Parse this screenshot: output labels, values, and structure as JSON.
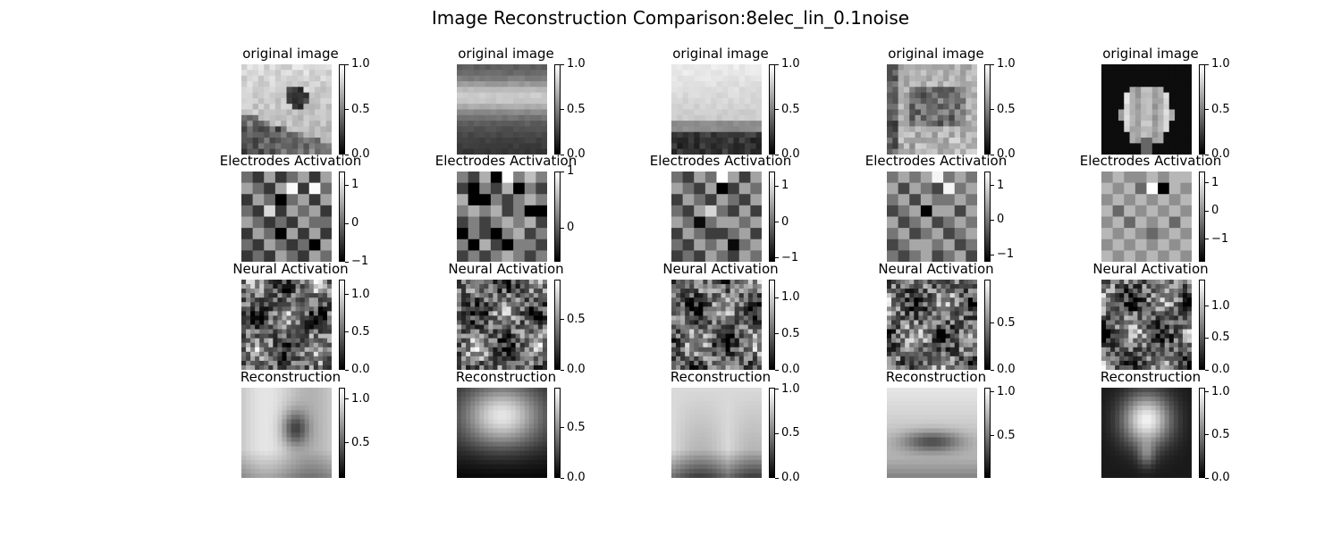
{
  "title": "Image Reconstruction Comparison:8elec_lin_0.1noise",
  "chart_data": {
    "type": "heatmap",
    "colormap": "gray",
    "grid": false,
    "row_titles": [
      "original image",
      "Electrodes Activation",
      "Neural Activation",
      "Reconstruction"
    ],
    "panels": [
      [
        {
          "col": 0,
          "title": "original image",
          "clim": [
            0,
            1.0
          ],
          "ticks": [
            0.0,
            0.5,
            1.0
          ],
          "tick_labels": [
            "0.0",
            "0.5",
            "1.0"
          ],
          "size": 16,
          "pattern": "sample0"
        },
        {
          "col": 1,
          "title": "original image",
          "clim": [
            0,
            1.0
          ],
          "ticks": [
            0.0,
            0.5,
            1.0
          ],
          "tick_labels": [
            "0.0",
            "0.5",
            "1.0"
          ],
          "size": 16,
          "pattern": "sample1"
        },
        {
          "col": 2,
          "title": "original image",
          "clim": [
            0,
            1.0
          ],
          "ticks": [
            0.0,
            0.5,
            1.0
          ],
          "tick_labels": [
            "0.0",
            "0.5",
            "1.0"
          ],
          "size": 16,
          "pattern": "sample2"
        },
        {
          "col": 3,
          "title": "original image",
          "clim": [
            0,
            1.0
          ],
          "ticks": [
            0.0,
            0.5,
            1.0
          ],
          "tick_labels": [
            "0.0",
            "0.5",
            "1.0"
          ],
          "size": 16,
          "pattern": "sample3"
        },
        {
          "col": 4,
          "title": "original image",
          "clim": [
            0,
            1.0
          ],
          "ticks": [
            0.0,
            0.5,
            1.0
          ],
          "tick_labels": [
            "0.0",
            "0.5",
            "1.0"
          ],
          "size": 16,
          "pattern": "sample4"
        }
      ],
      [
        {
          "col": 0,
          "title": "Electrodes Activation",
          "clim": [
            -1.0,
            1.35
          ],
          "ticks": [
            -1,
            0,
            1
          ],
          "tick_labels": [
            "−1",
            "0",
            "1"
          ],
          "size": 8,
          "pattern": "electrodes",
          "values": [
            [
              0.0,
              -0.5,
              0.5,
              -0.5,
              0.0,
              0.5,
              -0.5,
              0.5
            ],
            [
              0.5,
              0.0,
              -0.5,
              0.5,
              1.3,
              -0.5,
              1.3,
              0.0
            ],
            [
              -0.5,
              0.5,
              0.0,
              -1.0,
              0.0,
              0.5,
              -0.5,
              0.5
            ],
            [
              0.0,
              -0.5,
              1.0,
              -0.5,
              0.5,
              0.0,
              0.5,
              -0.5
            ],
            [
              0.5,
              0.0,
              -0.5,
              0.0,
              -0.5,
              0.5,
              0.0,
              0.0
            ],
            [
              -0.5,
              0.5,
              0.0,
              -1.0,
              0.5,
              -0.5,
              0.5,
              -0.5
            ],
            [
              0.0,
              -0.5,
              0.5,
              0.0,
              -0.5,
              0.0,
              -1.0,
              0.5
            ],
            [
              -0.5,
              0.0,
              -0.5,
              0.5,
              0.0,
              -0.5,
              0.5,
              0.0
            ]
          ]
        },
        {
          "col": 1,
          "title": "Electrodes Activation",
          "clim": [
            -0.6,
            1.0
          ],
          "ticks": [
            0,
            1
          ],
          "tick_labels": [
            "0",
            "1"
          ],
          "size": 8,
          "pattern": "electrodes",
          "values": [
            [
              0.2,
              -0.2,
              0.5,
              -0.6,
              1.0,
              0.2,
              0.6,
              0.2
            ],
            [
              -0.2,
              -0.6,
              0.2,
              -0.2,
              0.5,
              -0.6,
              0.2,
              -0.2
            ],
            [
              0.5,
              -0.6,
              -0.6,
              0.2,
              -0.2,
              0.2,
              0.5,
              0.2
            ],
            [
              0.2,
              0.5,
              0.2,
              0.5,
              -0.2,
              0.2,
              -0.6,
              -0.6
            ],
            [
              -0.2,
              0.2,
              -0.2,
              0.2,
              0.5,
              0.2,
              0.5,
              -0.2
            ],
            [
              -0.6,
              0.2,
              -0.2,
              -0.6,
              0.2,
              0.5,
              -0.2,
              0.2
            ],
            [
              0.2,
              -0.6,
              0.5,
              -0.2,
              -0.6,
              0.2,
              0.2,
              -0.2
            ],
            [
              -0.2,
              0.2,
              -0.2,
              0.2,
              0.5,
              0.2,
              -0.2,
              0.2
            ]
          ]
        },
        {
          "col": 2,
          "title": "Electrodes Activation",
          "clim": [
            -1.1,
            1.4
          ],
          "ticks": [
            -1,
            0,
            1
          ],
          "tick_labels": [
            "−1",
            "0",
            "1"
          ],
          "size": 8,
          "pattern": "electrodes",
          "values": [
            [
              0.0,
              -0.5,
              0.5,
              0.0,
              1.4,
              0.5,
              -0.5,
              0.5
            ],
            [
              0.5,
              0.0,
              -0.5,
              0.5,
              -1.1,
              -0.5,
              0.5,
              0.0
            ],
            [
              -0.5,
              0.5,
              0.0,
              -0.5,
              0.5,
              0.0,
              -0.5,
              0.5
            ],
            [
              0.0,
              -0.5,
              0.5,
              1.0,
              0.0,
              -0.5,
              0.5,
              -0.5
            ],
            [
              0.5,
              0.0,
              -1.0,
              0.0,
              0.5,
              0.5,
              0.0,
              0.5
            ],
            [
              -0.5,
              0.5,
              0.0,
              -0.5,
              -0.5,
              0.0,
              0.5,
              -0.5
            ],
            [
              0.0,
              -0.5,
              0.5,
              0.0,
              0.5,
              -1.0,
              0.0,
              0.5
            ],
            [
              -0.5,
              0.0,
              -0.5,
              0.5,
              0.0,
              -0.5,
              0.5,
              0.0
            ]
          ]
        },
        {
          "col": 3,
          "title": "Electrodes Activation",
          "clim": [
            -1.2,
            1.4
          ],
          "ticks": [
            -1,
            0,
            1
          ],
          "tick_labels": [
            "−1",
            "0",
            "1"
          ],
          "size": 8,
          "pattern": "electrodes",
          "values": [
            [
              0.0,
              0.5,
              0.0,
              0.5,
              1.3,
              0.0,
              0.5,
              0.0
            ],
            [
              0.5,
              -0.5,
              0.5,
              0.0,
              -0.5,
              1.3,
              0.0,
              0.5
            ],
            [
              0.0,
              0.5,
              -0.5,
              0.5,
              0.0,
              0.0,
              0.5,
              0.0
            ],
            [
              -0.5,
              0.0,
              0.5,
              -1.2,
              0.5,
              0.5,
              -0.5,
              0.5
            ],
            [
              0.5,
              -0.5,
              0.0,
              0.5,
              -0.5,
              0.0,
              0.5,
              0.0
            ],
            [
              0.0,
              0.5,
              -0.5,
              0.0,
              0.5,
              -0.5,
              0.0,
              0.5
            ],
            [
              -0.5,
              0.0,
              0.5,
              0.5,
              0.0,
              0.5,
              -0.5,
              0.0
            ],
            [
              0.0,
              -0.5,
              0.0,
              0.5,
              -0.5,
              0.0,
              0.5,
              -0.5
            ]
          ]
        },
        {
          "col": 4,
          "title": "Electrodes Activation",
          "clim": [
            -1.8,
            1.4
          ],
          "ticks": [
            -1,
            0,
            1
          ],
          "tick_labels": [
            "−1",
            "0",
            "1"
          ],
          "size": 8,
          "pattern": "electrodes",
          "values": [
            [
              0.0,
              0.5,
              0.0,
              0.0,
              0.5,
              0.0,
              0.5,
              0.5
            ],
            [
              0.5,
              0.0,
              0.5,
              -0.5,
              1.4,
              -1.8,
              0.5,
              0.0
            ],
            [
              0.0,
              0.5,
              0.0,
              0.5,
              0.0,
              0.5,
              0.0,
              0.5
            ],
            [
              0.5,
              -0.5,
              0.5,
              0.0,
              0.5,
              0.0,
              0.5,
              0.0
            ],
            [
              0.0,
              0.5,
              -0.5,
              0.5,
              0.0,
              0.5,
              -0.5,
              0.5
            ],
            [
              0.5,
              0.0,
              0.5,
              0.0,
              -0.5,
              0.0,
              0.5,
              0.0
            ],
            [
              0.0,
              0.5,
              0.0,
              0.5,
              0.0,
              0.5,
              0.0,
              0.5
            ],
            [
              0.5,
              0.0,
              0.5,
              0.0,
              0.5,
              0.0,
              0.5,
              0.0
            ]
          ]
        }
      ],
      [
        {
          "col": 0,
          "title": "Neural Activation",
          "clim": [
            0,
            1.2
          ],
          "ticks": [
            0.0,
            0.5,
            1.0
          ],
          "tick_labels": [
            "0.0",
            "0.5",
            "1.0"
          ],
          "size": 20,
          "pattern": "neural"
        },
        {
          "col": 1,
          "title": "Neural Activation",
          "clim": [
            0,
            0.9
          ],
          "ticks": [
            0.0,
            0.5
          ],
          "tick_labels": [
            "0.0",
            "0.5"
          ],
          "size": 20,
          "pattern": "neural"
        },
        {
          "col": 2,
          "title": "Neural Activation",
          "clim": [
            0,
            1.25
          ],
          "ticks": [
            0.0,
            0.5,
            1.0
          ],
          "tick_labels": [
            "0.0",
            "0.5",
            "1.0"
          ],
          "size": 20,
          "pattern": "neural"
        },
        {
          "col": 3,
          "title": "Neural Activation",
          "clim": [
            0,
            0.97
          ],
          "ticks": [
            0.0,
            0.5
          ],
          "tick_labels": [
            "0.0",
            "0.5"
          ],
          "size": 20,
          "pattern": "neural"
        },
        {
          "col": 4,
          "title": "Neural Activation",
          "clim": [
            0,
            1.42
          ],
          "ticks": [
            0.0,
            0.5,
            1.0
          ],
          "tick_labels": [
            "0.0",
            "0.5",
            "1.0"
          ],
          "size": 20,
          "pattern": "neural"
        }
      ],
      [
        {
          "col": 0,
          "title": "Reconstruction",
          "clim": [
            0.1,
            1.13
          ],
          "ticks": [
            0.5,
            1.0
          ],
          "tick_labels": [
            "0.5",
            "1.0"
          ],
          "size": 20,
          "pattern": "recon0"
        },
        {
          "col": 1,
          "title": "Reconstruction",
          "clim": [
            0,
            0.9
          ],
          "ticks": [
            0.0,
            0.5
          ],
          "tick_labels": [
            "0.0",
            "0.5"
          ],
          "size": 20,
          "pattern": "recon1"
        },
        {
          "col": 2,
          "title": "Reconstruction",
          "clim": [
            0,
            1.02
          ],
          "ticks": [
            0.0,
            0.5,
            1.0
          ],
          "tick_labels": [
            "0.0",
            "0.5",
            "1.0"
          ],
          "size": 20,
          "pattern": "recon2"
        },
        {
          "col": 3,
          "title": "Reconstruction",
          "clim": [
            0.02,
            1.05
          ],
          "ticks": [
            0.5,
            1.0
          ],
          "tick_labels": [
            "0.5",
            "1.0"
          ],
          "size": 20,
          "pattern": "recon3"
        },
        {
          "col": 4,
          "title": "Reconstruction",
          "clim": [
            0,
            1.05
          ],
          "ticks": [
            0.0,
            0.5,
            1.0
          ],
          "tick_labels": [
            "0.0",
            "0.5",
            "1.0"
          ],
          "size": 20,
          "pattern": "recon4"
        }
      ]
    ]
  }
}
